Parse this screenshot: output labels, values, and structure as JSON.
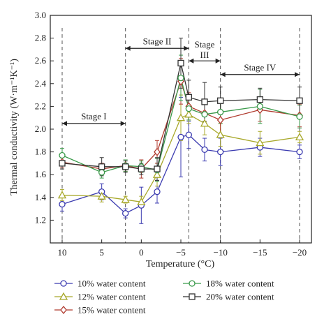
{
  "chart_data": {
    "type": "line",
    "title": "",
    "xlabel": "Temperature (°C)",
    "ylabel": "Thermal conductivity (W·m⁻¹K⁻¹)",
    "x": [
      10,
      5,
      2,
      0,
      -2,
      -5,
      -6,
      -8,
      -10,
      -15,
      -20
    ],
    "xticks": [
      10,
      5,
      0,
      -5,
      -10,
      -15,
      -20
    ],
    "xtick_labels": [
      "10",
      "5",
      "0",
      "−5",
      "−10",
      "−15",
      "−20"
    ],
    "xlim": [
      11.5,
      -21.5
    ],
    "ylim": [
      1.0,
      3.0
    ],
    "yticks": [
      1.2,
      1.4,
      1.6,
      1.8,
      2.0,
      2.2,
      2.4,
      2.6,
      2.8,
      3.0
    ],
    "ytick_labels": [
      "1.2",
      "1.4",
      "1.6",
      "1.8",
      "2.0",
      "2.2",
      "2.4",
      "2.6",
      "2.8",
      "3.0"
    ],
    "grid": false,
    "legend_position": "bottom",
    "series": [
      {
        "name": "10% water content",
        "color": "#3b3bb0",
        "marker": "circle",
        "values": [
          1.34,
          1.45,
          1.26,
          1.33,
          1.45,
          1.93,
          1.95,
          1.82,
          1.8,
          1.84,
          1.8
        ],
        "errors": [
          0.06,
          0.07,
          0.04,
          0.16,
          0.1,
          0.35,
          0.12,
          0.1,
          0.12,
          0.08,
          0.06
        ]
      },
      {
        "name": "12% water content",
        "color": "#a8a82a",
        "marker": "triangle",
        "values": [
          1.42,
          1.41,
          1.38,
          1.36,
          1.6,
          2.1,
          2.13,
          2.05,
          1.95,
          1.88,
          1.93
        ],
        "errors": [
          0.05,
          0.05,
          0.03,
          0.05,
          0.1,
          0.2,
          0.08,
          0.1,
          0.1,
          0.1,
          0.05
        ]
      },
      {
        "name": "15% water content",
        "color": "#b03a2e",
        "marker": "diamond",
        "values": [
          1.71,
          1.65,
          1.68,
          1.65,
          1.8,
          2.42,
          2.2,
          2.14,
          2.08,
          2.17,
          2.12
        ],
        "errors": [
          0.05,
          0.05,
          0.05,
          0.08,
          0.1,
          0.2,
          0.12,
          0.1,
          0.15,
          0.1,
          0.1
        ]
      },
      {
        "name": "18% water content",
        "color": "#3a9a4a",
        "marker": "circle",
        "values": [
          1.77,
          1.62,
          1.68,
          1.67,
          1.64,
          2.45,
          2.18,
          2.13,
          2.15,
          2.2,
          2.11
        ],
        "errors": [
          0.06,
          0.05,
          0.05,
          0.05,
          0.1,
          0.2,
          0.1,
          0.1,
          0.1,
          0.15,
          0.1
        ]
      },
      {
        "name": "20% water content",
        "color": "#333333",
        "marker": "square",
        "values": [
          1.7,
          1.67,
          1.67,
          1.65,
          1.65,
          2.58,
          2.28,
          2.24,
          2.25,
          2.26,
          2.25
        ],
        "errors": [
          0.05,
          0.08,
          0.05,
          0.05,
          0.1,
          0.22,
          0.15,
          0.17,
          0.12,
          0.1,
          0.12
        ]
      }
    ],
    "annotations": [
      {
        "text": "Stage I",
        "from": 10,
        "to": 2,
        "y": 2.05
      },
      {
        "text": "Stage II",
        "from": 2,
        "to": -6,
        "y": 2.71
      },
      {
        "text": "Stage",
        "from": -6,
        "to": -10,
        "y": 2.6,
        "line2": "III"
      },
      {
        "text": "Stage IV",
        "from": -10,
        "to": -20,
        "y": 2.48
      }
    ],
    "dashed_boundaries": [
      10,
      2,
      -6,
      -10,
      -20
    ]
  }
}
